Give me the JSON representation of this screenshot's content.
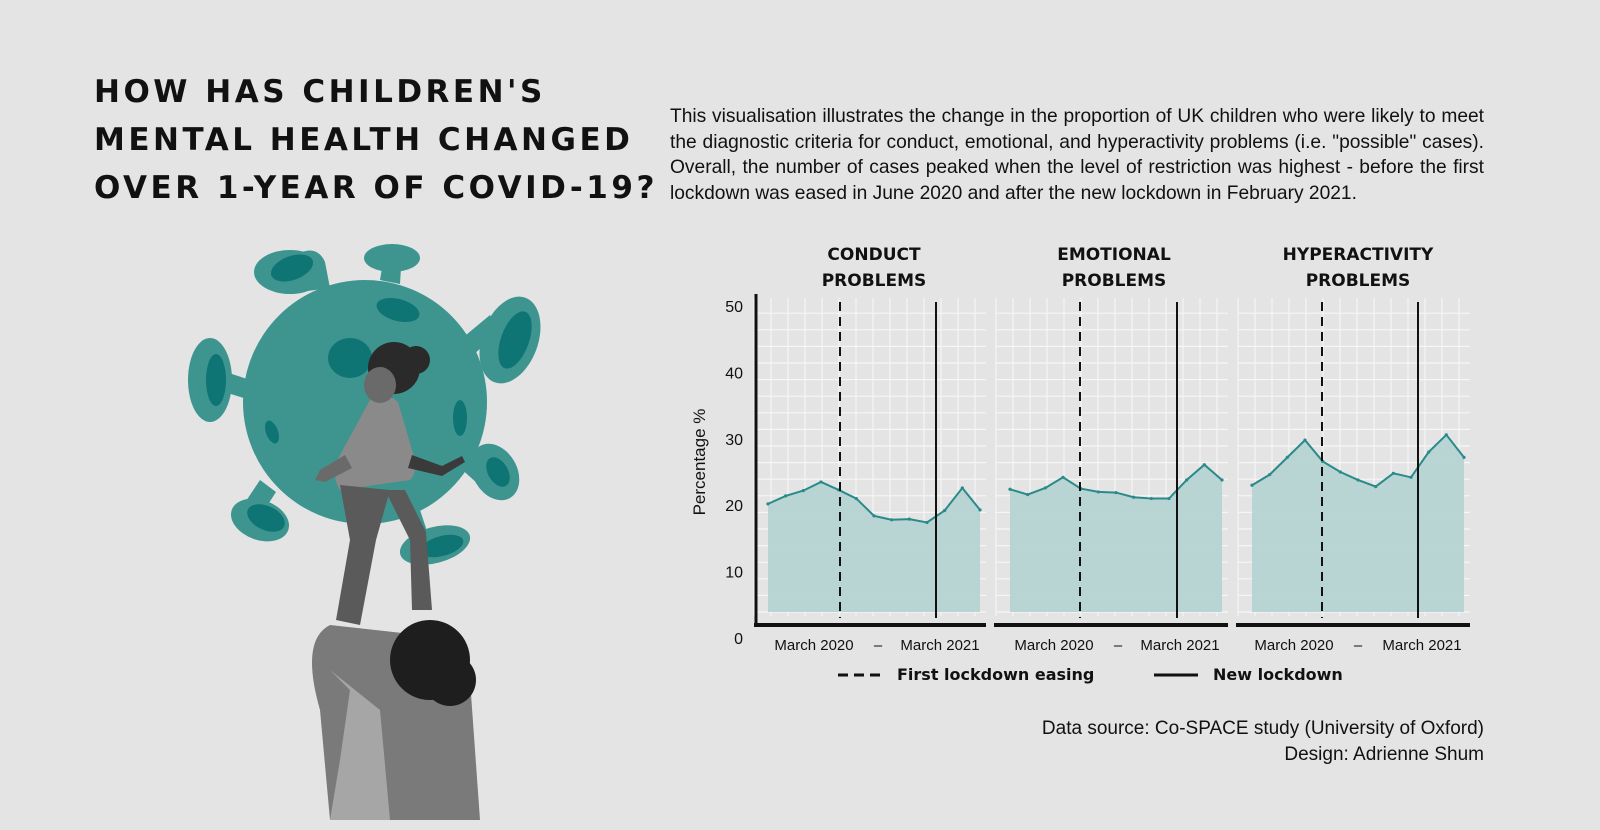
{
  "title_lines": [
    "HOW HAS CHILDREN'S",
    "MENTAL HEALTH CHANGED",
    "OVER 1-YEAR OF COVID-19?"
  ],
  "description": "This visualisation illustrates the change in the proportion of UK children who were likely to meet the diagnostic criteria for conduct, emotional, and hyperactivity problems (i.e. \"possible\" cases). Overall, the number of cases peaked when the level of restriction was highest - before the first lockdown was eased in June 2020 and after the new lockdown in February 2021.",
  "source_lines": [
    "Data source: Co-SPACE study (University of Oxford)",
    "Design: Adrienne Shum"
  ],
  "colors": {
    "background": "#e4e4e4",
    "accent": "#2a8a8a",
    "area_fill": "#b5d3d2",
    "virus": "#3e9590",
    "virus_spots": "#0e7474"
  },
  "chart_data": {
    "type": "area",
    "ylabel": "Percentage %",
    "ylim": [
      0,
      50
    ],
    "yticks": [
      0,
      10,
      20,
      30,
      40,
      50
    ],
    "grid": true,
    "x_tick_labels": [
      "March 2020",
      "–",
      "March 2021"
    ],
    "legend_position": "bottom",
    "legend": [
      {
        "label": "First lockdown easing",
        "style": "dashed"
      },
      {
        "label": "New lockdown",
        "style": "solid"
      }
    ],
    "panels": [
      {
        "title_lines": [
          "CONDUCT",
          "PROBLEMS"
        ],
        "values": [
          20.2,
          21.4,
          22.2,
          23.5,
          22.3,
          21.0,
          18.4,
          17.8,
          17.9,
          17.4,
          19.2,
          22.6,
          19.3
        ]
      },
      {
        "title_lines": [
          "EMOTIONAL",
          "PROBLEMS"
        ],
        "values": [
          22.4,
          21.6,
          22.6,
          24.2,
          22.5,
          22.0,
          21.9,
          21.2,
          21.0,
          21.0,
          23.8,
          26.1,
          23.8
        ]
      },
      {
        "title_lines": [
          "HYPERACTIVITY",
          "PROBLEMS"
        ],
        "values": [
          23.0,
          24.6,
          27.2,
          29.8,
          26.6,
          25.0,
          23.8,
          22.8,
          24.8,
          24.2,
          28.0,
          30.6,
          27.2
        ]
      }
    ]
  }
}
